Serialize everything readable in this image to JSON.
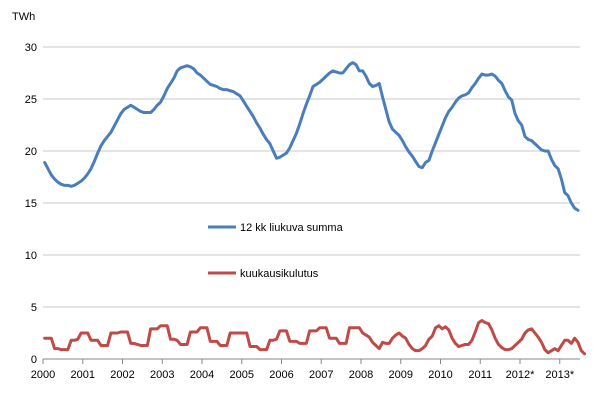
{
  "chart_data": {
    "type": "line",
    "unit_label": "TWh",
    "ylim": [
      0,
      30
    ],
    "y_ticks": [
      0,
      5,
      10,
      15,
      20,
      25,
      30
    ],
    "x_tick_labels": [
      "2000",
      "2001",
      "2002",
      "2003",
      "2004",
      "2005",
      "2006",
      "2007",
      "2008",
      "2009",
      "2010",
      "2011",
      "2012*",
      "2013*"
    ],
    "x_start_year": 2000,
    "grid": "horizontal",
    "legend_position": "center-left, inside plot",
    "series": [
      {
        "name": "12 kk liukuva summa",
        "color": "#4a7ebb",
        "values": [
          18.9,
          18.3,
          17.7,
          17.3,
          17.0,
          16.8,
          16.7,
          16.7,
          16.6,
          16.7,
          16.9,
          17.1,
          17.4,
          17.8,
          18.3,
          19.0,
          19.8,
          20.5,
          21.0,
          21.4,
          21.8,
          22.4,
          23.0,
          23.6,
          24.0,
          24.2,
          24.4,
          24.2,
          24.0,
          23.8,
          23.7,
          23.7,
          23.7,
          24.0,
          24.4,
          24.7,
          25.3,
          26.0,
          26.5,
          27.0,
          27.7,
          28.0,
          28.1,
          28.2,
          28.1,
          27.9,
          27.5,
          27.3,
          27.0,
          26.7,
          26.4,
          26.3,
          26.2,
          26.0,
          25.9,
          25.9,
          25.8,
          25.7,
          25.5,
          25.3,
          24.8,
          24.3,
          23.8,
          23.3,
          22.7,
          22.2,
          21.6,
          21.1,
          20.7,
          20.0,
          19.3,
          19.4,
          19.6,
          19.8,
          20.3,
          21.0,
          21.7,
          22.6,
          23.6,
          24.5,
          25.3,
          26.2,
          26.4,
          26.6,
          26.9,
          27.2,
          27.5,
          27.7,
          27.6,
          27.5,
          27.5,
          27.9,
          28.3,
          28.5,
          28.3,
          27.7,
          27.7,
          27.2,
          26.5,
          26.2,
          26.3,
          26.5,
          25.2,
          24.0,
          22.8,
          22.1,
          21.8,
          21.5,
          21.0,
          20.4,
          19.9,
          19.5,
          19.0,
          18.5,
          18.4,
          18.9,
          19.1,
          20.0,
          20.8,
          21.6,
          22.4,
          23.2,
          23.8,
          24.2,
          24.7,
          25.1,
          25.3,
          25.4,
          25.6,
          26.1,
          26.5,
          27.0,
          27.4,
          27.3,
          27.3,
          27.4,
          27.2,
          26.8,
          26.5,
          25.8,
          25.2,
          24.9,
          23.6,
          22.9,
          22.5,
          21.4,
          21.1,
          21.0,
          20.7,
          20.4,
          20.1,
          20.0,
          20.0,
          19.2,
          18.6,
          18.3,
          17.3,
          16.0,
          15.7,
          15.0,
          14.5,
          14.3
        ]
      },
      {
        "name": "kuukausikulutus",
        "color": "#be4b48",
        "values": [
          2.0,
          2.0,
          2.0,
          1.0,
          1.0,
          0.9,
          0.9,
          0.9,
          1.8,
          1.8,
          1.9,
          2.5,
          2.5,
          2.5,
          1.8,
          1.8,
          1.8,
          1.3,
          1.3,
          1.3,
          2.5,
          2.5,
          2.5,
          2.6,
          2.6,
          2.6,
          1.5,
          1.5,
          1.4,
          1.3,
          1.3,
          1.3,
          2.9,
          2.9,
          2.9,
          3.2,
          3.2,
          3.2,
          1.9,
          1.9,
          1.8,
          1.4,
          1.4,
          1.4,
          2.6,
          2.6,
          2.6,
          3.0,
          3.0,
          3.0,
          1.7,
          1.7,
          1.7,
          1.3,
          1.3,
          1.3,
          2.5,
          2.5,
          2.5,
          2.5,
          2.5,
          2.5,
          1.2,
          1.2,
          1.2,
          0.9,
          0.9,
          0.9,
          1.8,
          1.8,
          1.9,
          2.7,
          2.7,
          2.7,
          1.7,
          1.7,
          1.7,
          1.5,
          1.5,
          1.5,
          2.7,
          2.7,
          2.7,
          3.0,
          3.0,
          3.0,
          2.0,
          2.0,
          2.0,
          1.5,
          1.5,
          1.5,
          3.0,
          3.0,
          3.0,
          3.0,
          2.5,
          2.3,
          2.1,
          1.6,
          1.3,
          1.0,
          1.6,
          1.5,
          1.5,
          2.0,
          2.3,
          2.5,
          2.2,
          2.0,
          1.4,
          1.0,
          0.8,
          0.8,
          1.0,
          1.3,
          1.9,
          2.2,
          3.0,
          3.2,
          2.9,
          3.1,
          2.8,
          2.0,
          1.5,
          1.2,
          1.3,
          1.4,
          1.4,
          1.8,
          2.6,
          3.5,
          3.7,
          3.5,
          3.4,
          2.8,
          2.0,
          1.4,
          1.1,
          0.9,
          0.9,
          1.0,
          1.3,
          1.6,
          1.9,
          2.5,
          2.8,
          2.9,
          2.5,
          2.1,
          1.6,
          0.9,
          0.6,
          0.8,
          1.0,
          0.8,
          1.3,
          1.8,
          1.8,
          1.5,
          2.0,
          1.6,
          0.8,
          0.5
        ]
      }
    ]
  }
}
